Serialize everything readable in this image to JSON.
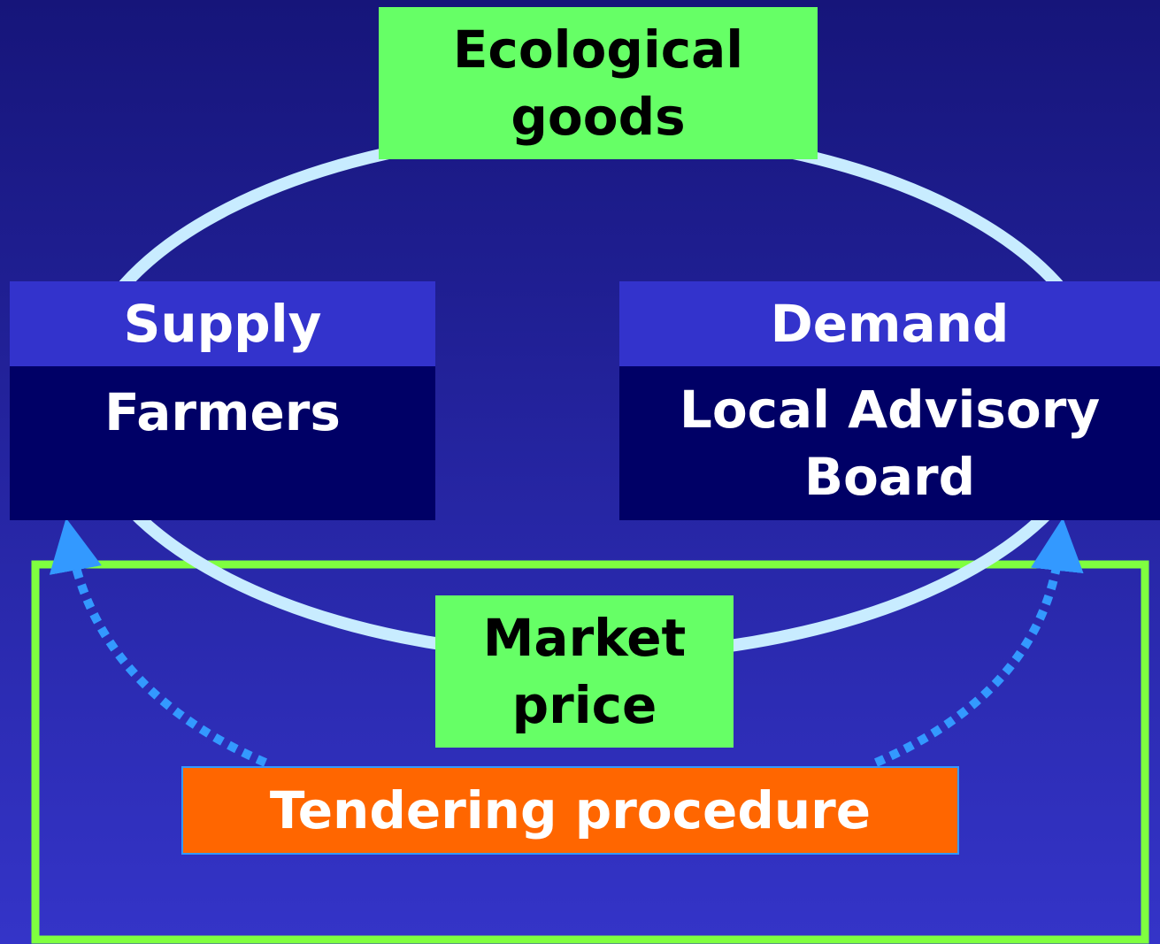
{
  "nodes": [
    {
      "label": "Ecological goods"
    },
    {
      "label": "Supply"
    },
    {
      "label": "Farmers"
    },
    {
      "label": "Demand"
    },
    {
      "label": "Local Advisory Board"
    },
    {
      "label": "Market price"
    },
    {
      "label": "Tendering procedure"
    }
  ]
}
